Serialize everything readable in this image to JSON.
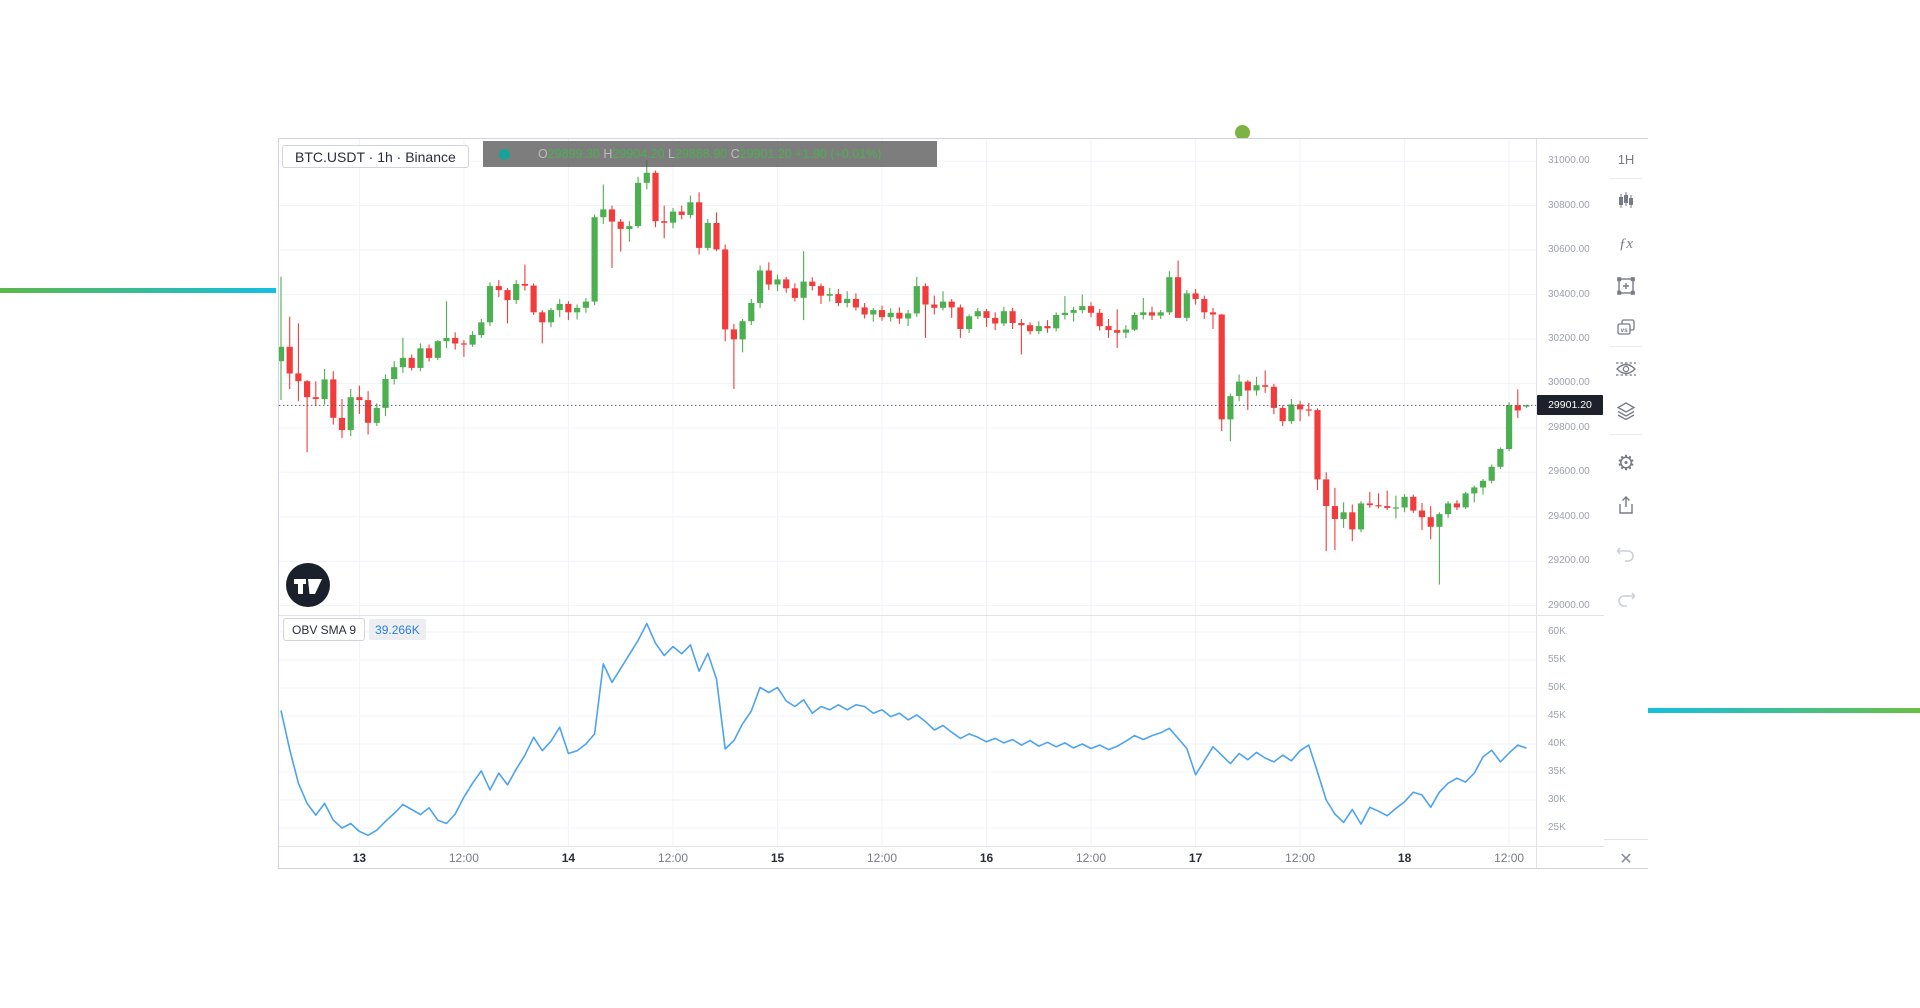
{
  "decor": {
    "left_line": {
      "color_from": "#5cb849",
      "color_to": "#14bfe2"
    },
    "right_line": {
      "color_from": "#14bfe2",
      "color_to": "#6abf45"
    },
    "dot_color": "#7cb342"
  },
  "widget": {
    "symbol_title": "BTC.USDT · 1h · Binance",
    "legend": {
      "dot_color": "#17a398",
      "open_label": "O",
      "open": "29899.30",
      "high_label": "H",
      "high": "29904.20",
      "low_label": "L",
      "low": "29888.90",
      "close_label": "C",
      "close": "29901.20",
      "change": "+1.90",
      "change_pct": "(+0.01%)"
    },
    "toolbar": {
      "interval": "1H"
    },
    "price_scale": {
      "ticks": [
        "31000.00",
        "30800.00",
        "30600.00",
        "30400.00",
        "30200.00",
        "30000.00",
        "29800.00",
        "29600.00",
        "29400.00",
        "29200.00",
        "29000.00"
      ],
      "last_price": "29901.20"
    },
    "obv_pane": {
      "label": "OBV SMA 9",
      "value": "39.266K",
      "ticks": [
        "60K",
        "55K",
        "50K",
        "45K",
        "40K",
        "35K",
        "30K",
        "25K"
      ]
    },
    "time_axis": {
      "labels": [
        {
          "text": "13",
          "index": 9,
          "major": true
        },
        {
          "text": "12:00",
          "index": 21,
          "major": false
        },
        {
          "text": "14",
          "index": 33,
          "major": true
        },
        {
          "text": "12:00",
          "index": 45,
          "major": false
        },
        {
          "text": "15",
          "index": 57,
          "major": true
        },
        {
          "text": "12:00",
          "index": 69,
          "major": false
        },
        {
          "text": "16",
          "index": 81,
          "major": true
        },
        {
          "text": "12:00",
          "index": 93,
          "major": false
        },
        {
          "text": "17",
          "index": 105,
          "major": true
        },
        {
          "text": "12:00",
          "index": 117,
          "major": false
        },
        {
          "text": "18",
          "index": 129,
          "major": true
        },
        {
          "text": "12:00",
          "index": 141,
          "major": false
        }
      ]
    }
  },
  "chart_data": {
    "type": "candlestick_with_indicator",
    "symbol": "BTC.USDT",
    "interval": "1h",
    "exchange": "Binance",
    "up_color": "#4caf50",
    "down_color": "#f23c3c",
    "indicator": {
      "name": "OBV SMA 9",
      "line_color": "#4da3f0",
      "current_value_k": 39.266,
      "ylim_k": [
        22,
        63
      ]
    },
    "price_axis": {
      "min": 29000,
      "max": 31000,
      "step": 200
    },
    "last_price": 29901.2,
    "candles_ohlc": [
      [
        30100,
        30480,
        29925,
        30165
      ],
      [
        30165,
        30300,
        29975,
        30045
      ],
      [
        30045,
        30270,
        29920,
        30010
      ],
      [
        30010,
        30015,
        29690,
        29938
      ],
      [
        29938,
        30010,
        29898,
        29930
      ],
      [
        29930,
        30065,
        29905,
        30018
      ],
      [
        30018,
        30055,
        29815,
        29845
      ],
      [
        29845,
        29930,
        29755,
        29790
      ],
      [
        29790,
        29975,
        29763,
        29938
      ],
      [
        29938,
        29990,
        29863,
        29925
      ],
      [
        29925,
        29965,
        29770,
        29823
      ],
      [
        29823,
        29910,
        29808,
        29890
      ],
      [
        29890,
        30040,
        29853,
        30020
      ],
      [
        30020,
        30100,
        29995,
        30073
      ],
      [
        30073,
        30205,
        30048,
        30115
      ],
      [
        30115,
        30130,
        30058,
        30070
      ],
      [
        30070,
        30180,
        30055,
        30158
      ],
      [
        30158,
        30175,
        30098,
        30115
      ],
      [
        30115,
        30195,
        30105,
        30190
      ],
      [
        30190,
        30370,
        30158,
        30205
      ],
      [
        30205,
        30230,
        30152,
        30180
      ],
      [
        30180,
        30195,
        30120,
        30175
      ],
      [
        30175,
        30235,
        30165,
        30218
      ],
      [
        30218,
        30290,
        30205,
        30275
      ],
      [
        30275,
        30455,
        30258,
        30438
      ],
      [
        30438,
        30465,
        30388,
        30420
      ],
      [
        30420,
        30430,
        30270,
        30375
      ],
      [
        30375,
        30465,
        30358,
        30448
      ],
      [
        30448,
        30535,
        30418,
        30440
      ],
      [
        30440,
        30450,
        30308,
        30320
      ],
      [
        30320,
        30330,
        30180,
        30275
      ],
      [
        30275,
        30340,
        30253,
        30330
      ],
      [
        30330,
        30380,
        30298,
        30358
      ],
      [
        30358,
        30370,
        30285,
        30320
      ],
      [
        30320,
        30355,
        30288,
        30340
      ],
      [
        30340,
        30385,
        30318,
        30368
      ],
      [
        30368,
        30760,
        30352,
        30748
      ],
      [
        30748,
        30895,
        30718,
        30783
      ],
      [
        30783,
        30800,
        30520,
        30728
      ],
      [
        30728,
        30740,
        30593,
        30695
      ],
      [
        30695,
        30730,
        30638,
        30708
      ],
      [
        30708,
        30930,
        30698,
        30903
      ],
      [
        30903,
        31005,
        30873,
        30948
      ],
      [
        30948,
        30958,
        30703,
        30730
      ],
      [
        30730,
        30800,
        30653,
        30723
      ],
      [
        30723,
        30790,
        30698,
        30773
      ],
      [
        30773,
        30800,
        30738,
        30758
      ],
      [
        30758,
        30845,
        30743,
        30815
      ],
      [
        30815,
        30860,
        30580,
        30610
      ],
      [
        30610,
        30740,
        30598,
        30722
      ],
      [
        30722,
        30770,
        30595,
        30603
      ],
      [
        30603,
        30625,
        30190,
        30243
      ],
      [
        30243,
        30268,
        29975,
        30198
      ],
      [
        30198,
        30290,
        30140,
        30280
      ],
      [
        30280,
        30380,
        30263,
        30362
      ],
      [
        30362,
        30530,
        30340,
        30508
      ],
      [
        30508,
        30545,
        30420,
        30445
      ],
      [
        30445,
        30490,
        30415,
        30468
      ],
      [
        30468,
        30480,
        30408,
        30428
      ],
      [
        30428,
        30450,
        30368,
        30385
      ],
      [
        30385,
        30595,
        30285,
        30458
      ],
      [
        30458,
        30478,
        30418,
        30438
      ],
      [
        30438,
        30450,
        30358,
        30395
      ],
      [
        30395,
        30430,
        30368,
        30402
      ],
      [
        30402,
        30425,
        30348,
        30362
      ],
      [
        30362,
        30415,
        30342,
        30380
      ],
      [
        30380,
        30405,
        30328,
        30342
      ],
      [
        30342,
        30362,
        30292,
        30310
      ],
      [
        30310,
        30340,
        30278,
        30330
      ],
      [
        30330,
        30350,
        30282,
        30298
      ],
      [
        30298,
        30338,
        30278,
        30318
      ],
      [
        30318,
        30342,
        30268,
        30292
      ],
      [
        30292,
        30330,
        30258,
        30315
      ],
      [
        30315,
        30480,
        30300,
        30438
      ],
      [
        30438,
        30450,
        30205,
        30355
      ],
      [
        30355,
        30395,
        30310,
        30340
      ],
      [
        30340,
        30415,
        30328,
        30368
      ],
      [
        30368,
        30380,
        30295,
        30342
      ],
      [
        30342,
        30355,
        30205,
        30245
      ],
      [
        30245,
        30310,
        30228,
        30302
      ],
      [
        30302,
        30340,
        30290,
        30325
      ],
      [
        30325,
        30335,
        30255,
        30295
      ],
      [
        30295,
        30320,
        30240,
        30270
      ],
      [
        30270,
        30345,
        30258,
        30325
      ],
      [
        30325,
        30340,
        30245,
        30272
      ],
      [
        30272,
        30290,
        30130,
        30262
      ],
      [
        30262,
        30275,
        30220,
        30235
      ],
      [
        30235,
        30280,
        30222,
        30258
      ],
      [
        30258,
        30285,
        30228,
        30248
      ],
      [
        30248,
        30320,
        30235,
        30308
      ],
      [
        30308,
        30393,
        30288,
        30318
      ],
      [
        30318,
        30345,
        30278,
        30330
      ],
      [
        30330,
        30400,
        30315,
        30348
      ],
      [
        30348,
        30365,
        30298,
        30318
      ],
      [
        30318,
        30335,
        30238,
        30258
      ],
      [
        30258,
        30290,
        30205,
        30240
      ],
      [
        30240,
        30333,
        30160,
        30228
      ],
      [
        30228,
        30262,
        30205,
        30242
      ],
      [
        30242,
        30320,
        30235,
        30308
      ],
      [
        30308,
        30385,
        30288,
        30320
      ],
      [
        30320,
        30345,
        30285,
        30305
      ],
      [
        30305,
        30330,
        30290,
        30320
      ],
      [
        30320,
        30505,
        30308,
        30478
      ],
      [
        30478,
        30553,
        30410,
        30295
      ],
      [
        30295,
        30420,
        30280,
        30405
      ],
      [
        30405,
        30425,
        30355,
        30380
      ],
      [
        30380,
        30395,
        30290,
        30320
      ],
      [
        30320,
        30340,
        30245,
        30310
      ],
      [
        30310,
        30312,
        29785,
        29838
      ],
      [
        29838,
        29955,
        29740,
        29943
      ],
      [
        29943,
        30040,
        29920,
        30008
      ],
      [
        30008,
        30015,
        29880,
        29968
      ],
      [
        29968,
        30030,
        29945,
        29992
      ],
      [
        29992,
        30058,
        29958,
        29985
      ],
      [
        29985,
        29998,
        29862,
        29890
      ],
      [
        29890,
        29902,
        29808,
        29830
      ],
      [
        29830,
        29930,
        29818,
        29905
      ],
      [
        29905,
        29922,
        29830,
        29883
      ],
      [
        29883,
        29912,
        29852,
        29880
      ],
      [
        29880,
        29888,
        29520,
        29568
      ],
      [
        29568,
        29600,
        29245,
        29448
      ],
      [
        29448,
        29530,
        29250,
        29390
      ],
      [
        29390,
        29465,
        29350,
        29420
      ],
      [
        29420,
        29455,
        29290,
        29343
      ],
      [
        29343,
        29470,
        29330,
        29460
      ],
      [
        29460,
        29512,
        29440,
        29452
      ],
      [
        29452,
        29505,
        29438,
        29448
      ],
      [
        29448,
        29518,
        29430,
        29440
      ],
      [
        29440,
        29495,
        29392,
        29442
      ],
      [
        29442,
        29502,
        29420,
        29490
      ],
      [
        29490,
        29500,
        29418,
        29428
      ],
      [
        29428,
        29462,
        29340,
        29398
      ],
      [
        29398,
        29448,
        29298,
        29355
      ],
      [
        29355,
        29420,
        29095,
        29412
      ],
      [
        29412,
        29470,
        29395,
        29460
      ],
      [
        29460,
        29475,
        29430,
        29442
      ],
      [
        29442,
        29512,
        29435,
        29505
      ],
      [
        29505,
        29540,
        29465,
        29532
      ],
      [
        29532,
        29570,
        29500,
        29562
      ],
      [
        29562,
        29635,
        29550,
        29625
      ],
      [
        29625,
        29712,
        29615,
        29705
      ],
      [
        29705,
        29915,
        29695,
        29902
      ],
      [
        29902,
        29973,
        29845,
        29878
      ],
      [
        29899.3,
        29904.2,
        29888.9,
        29901.2
      ]
    ],
    "obv_sma9_k": [
      46,
      39,
      33,
      29.4,
      27.3,
      29.4,
      26.4,
      25,
      25.8,
      24.4,
      23.7,
      24.6,
      26.2,
      27.6,
      29.2,
      28.3,
      27.4,
      28.6,
      26.4,
      25.8,
      27.5,
      30.5,
      33,
      35.2,
      31.8,
      34.8,
      32.7,
      35.5,
      38,
      41.2,
      38.8,
      40.5,
      43,
      38.3,
      38.8,
      40,
      41.8,
      54.3,
      51,
      53.5,
      56,
      58.5,
      61.5,
      58,
      55.8,
      57.4,
      56.1,
      57.7,
      53,
      56.2,
      51.6,
      39.1,
      40.6,
      43.6,
      45.9,
      50.1,
      49.2,
      50.1,
      47.7,
      46.7,
      47.9,
      45.5,
      46.7,
      46.1,
      47,
      46.1,
      47,
      46.7,
      45.5,
      46.1,
      44.9,
      45.5,
      44.3,
      45.2,
      44,
      42.5,
      43.3,
      42.1,
      41,
      41.8,
      41.2,
      40.4,
      41,
      40.2,
      40.8,
      39.8,
      40.6,
      39.6,
      40.3,
      39.5,
      40.2,
      39.3,
      40,
      39.2,
      39.8,
      39,
      39.6,
      40.5,
      41.5,
      40.8,
      41.5,
      42,
      42.8,
      41,
      39.2,
      34.5,
      37,
      39.5,
      38,
      36.5,
      38.3,
      37.2,
      38.5,
      37.5,
      36.8,
      38,
      37,
      38.8,
      39.8,
      35,
      30,
      27.5,
      26,
      28.3,
      25.7,
      28.7,
      28,
      27.2,
      28.5,
      29.7,
      31.4,
      30.9,
      28.7,
      31.4,
      33,
      33.9,
      33.2,
      34.8,
      37.7,
      38.9,
      36.8,
      38.4,
      39.8,
      39.266
    ]
  }
}
